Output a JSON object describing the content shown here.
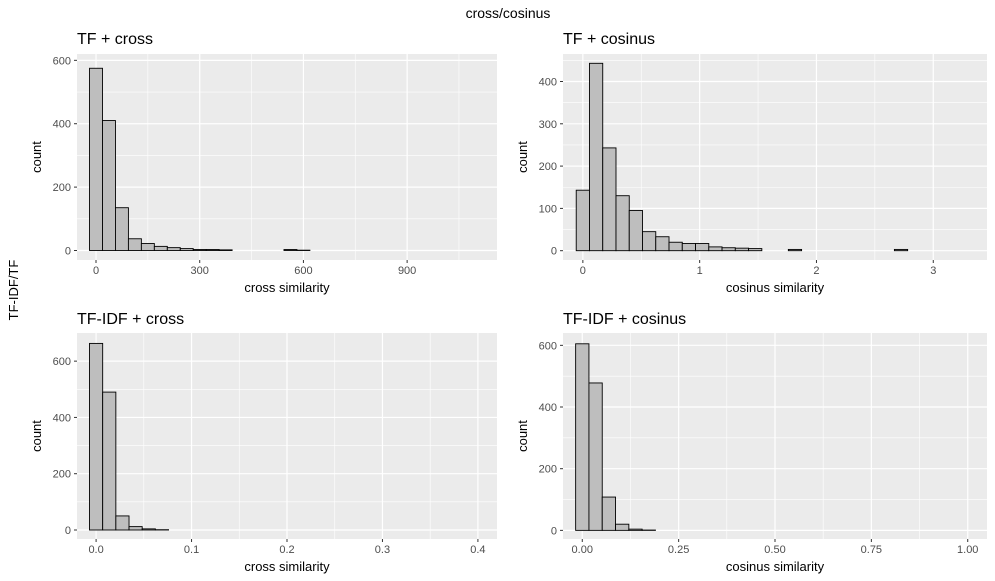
{
  "figure": {
    "title": "cross/cosinus",
    "row_label": "TF-IDF/TF"
  },
  "colors": {
    "panel_bg": "#ebebeb",
    "grid": "#ffffff",
    "bar_fill": "#bebebe",
    "bar_stroke": "#000000"
  },
  "chart_data": [
    {
      "type": "bar",
      "title": "TF + cross",
      "xlabel": "cross similarity",
      "ylabel": "count",
      "xlim": [
        -55,
        1160
      ],
      "ylim": [
        -30,
        620
      ],
      "x_ticks": [
        0,
        300,
        600,
        900
      ],
      "x_tick_labels": [
        "0",
        "300",
        "600",
        "900"
      ],
      "y_ticks": [
        0,
        200,
        400,
        600
      ],
      "y_tick_labels": [
        "0",
        "200",
        "400",
        "600"
      ],
      "grid": true,
      "bin_width": 37.5,
      "bin_start": -18.75,
      "counts": [
        575,
        410,
        135,
        37,
        22,
        13,
        9,
        6,
        3,
        3,
        2,
        0,
        0,
        0,
        0,
        3,
        1,
        0,
        0,
        0,
        0,
        0,
        0,
        0,
        0,
        0,
        0,
        0,
        0,
        0
      ]
    },
    {
      "type": "bar",
      "title": "TF + cosinus",
      "xlabel": "cosinus similarity",
      "ylabel": "count",
      "xlim": [
        -0.17,
        3.46
      ],
      "ylim": [
        -22,
        465
      ],
      "x_ticks": [
        0,
        1,
        2,
        3
      ],
      "x_tick_labels": [
        "0",
        "1",
        "2",
        "3"
      ],
      "y_ticks": [
        0,
        100,
        200,
        300,
        400
      ],
      "y_tick_labels": [
        "0",
        "100",
        "200",
        "300",
        "400"
      ],
      "grid": true,
      "bin_width": 0.1135,
      "bin_start": -0.0568,
      "counts": [
        143,
        443,
        243,
        130,
        95,
        45,
        33,
        20,
        17,
        17,
        9,
        7,
        6,
        5,
        0,
        0,
        3,
        0,
        0,
        0,
        0,
        0,
        0,
        0,
        3,
        0,
        0,
        0,
        0,
        0
      ]
    },
    {
      "type": "bar",
      "title": "TF-IDF + cross",
      "xlabel": "cross similarity",
      "ylabel": "count",
      "xlim": [
        -0.02,
        0.42
      ],
      "ylim": [
        -32,
        700
      ],
      "x_ticks": [
        0.0,
        0.1,
        0.2,
        0.3,
        0.4
      ],
      "x_tick_labels": [
        "0.0",
        "0.1",
        "0.2",
        "0.3",
        "0.4"
      ],
      "y_ticks": [
        0,
        200,
        400,
        600
      ],
      "y_tick_labels": [
        "0",
        "200",
        "400",
        "600"
      ],
      "grid": true,
      "bin_width": 0.0138,
      "bin_start": -0.0069,
      "counts": [
        663,
        490,
        50,
        12,
        4,
        1,
        0,
        0,
        0,
        0,
        0,
        0,
        0,
        0,
        0,
        0,
        0,
        0,
        0,
        0,
        0,
        0,
        0,
        0,
        0,
        0,
        0,
        0,
        0,
        0
      ]
    },
    {
      "type": "bar",
      "title": "TF-IDF + cosinus",
      "xlabel": "cosinus similarity",
      "ylabel": "count",
      "xlim": [
        -0.05,
        1.05
      ],
      "ylim": [
        -28,
        640
      ],
      "x_ticks": [
        0.0,
        0.25,
        0.5,
        0.75,
        1.0
      ],
      "x_tick_labels": [
        "0.00",
        "0.25",
        "0.50",
        "0.75",
        "1.00"
      ],
      "y_ticks": [
        0,
        200,
        400,
        600
      ],
      "y_tick_labels": [
        "0",
        "200",
        "400",
        "600"
      ],
      "grid": true,
      "bin_width": 0.0345,
      "bin_start": -0.0172,
      "counts": [
        605,
        478,
        108,
        20,
        4,
        1,
        0,
        0,
        0,
        0,
        0,
        0,
        0,
        0,
        0,
        0,
        0,
        0,
        0,
        0,
        0,
        0,
        0,
        0,
        0,
        0,
        0,
        0,
        0,
        0
      ]
    }
  ]
}
